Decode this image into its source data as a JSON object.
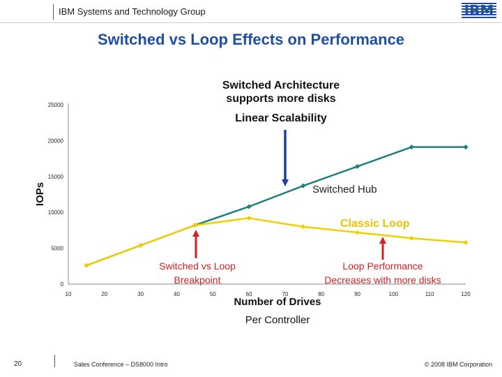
{
  "header": {
    "group_name": "IBM Systems and Technology Group",
    "logo_text": "IBM"
  },
  "slide_title": "Switched vs Loop Effects on Performance",
  "annotations": {
    "switched_arch_line1": "Switched Architecture",
    "switched_arch_line2": "supports more disks",
    "linear_scalability": "Linear Scalability",
    "switched_hub": "Switched Hub",
    "classic_loop": "Classic Loop",
    "breakpoint_line1": "Switched vs Loop",
    "breakpoint_line2": "Breakpoint",
    "decrease_line1": "Loop Performance",
    "decrease_line2": "Decreases with more disks",
    "per_controller": "Per Controller"
  },
  "chart_data": {
    "type": "line",
    "title": "",
    "xlabel": "Number of Drives",
    "ylabel": "IOPs",
    "xlim": [
      10,
      120
    ],
    "ylim": [
      0,
      25000
    ],
    "x_ticks": [
      10,
      20,
      30,
      40,
      50,
      60,
      70,
      80,
      90,
      100,
      110,
      120
    ],
    "y_ticks": [
      0,
      5000,
      10000,
      15000,
      20000,
      25000
    ],
    "grid": false,
    "series": [
      {
        "name": "Switched Hub",
        "color": "#1e7f7c",
        "x": [
          15,
          30,
          45,
          60,
          75,
          90,
          105,
          120
        ],
        "y": [
          2600,
          5400,
          8200,
          10800,
          13700,
          16400,
          19100,
          19100
        ]
      },
      {
        "name": "Classic Loop",
        "color": "#f0d000",
        "x": [
          15,
          30,
          45,
          60,
          75,
          90,
          105,
          120
        ],
        "y": [
          2600,
          5400,
          8200,
          9200,
          8000,
          7200,
          6400,
          5800
        ]
      }
    ]
  },
  "footer": {
    "page_number": "20",
    "conference": "Sales Conference – DS8000 Intro",
    "copyright": "© 2008 IBM Corporation"
  }
}
